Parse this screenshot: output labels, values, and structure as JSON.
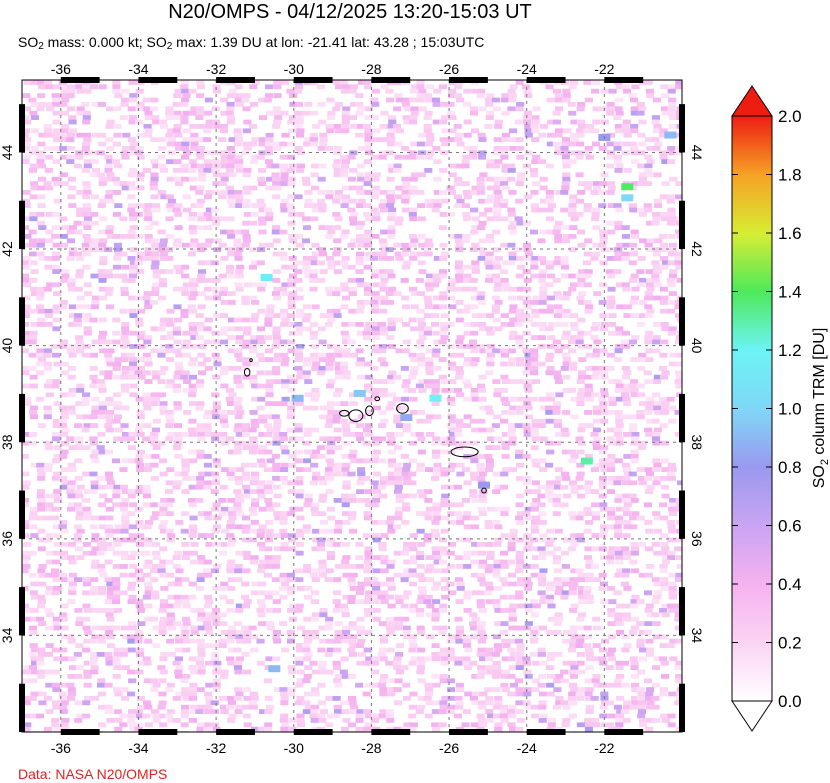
{
  "header": {
    "title": "N20/OMPS - 04/12/2025 13:20-15:03 UT",
    "subtitle_prefix": "SO",
    "subtitle_sub": "2",
    "subtitle_mass": " mass: 0.000 kt; SO",
    "subtitle_sub2": "2",
    "subtitle_rest": " max: 1.39 DU at lon: -21.41 lat: 43.28 ; 15:03UTC"
  },
  "credit": "Data: NASA N20/OMPS",
  "map": {
    "lon_range": [
      -37.0,
      -20.0
    ],
    "lat_range": [
      32.0,
      45.5
    ],
    "lon_ticks": [
      "-36",
      "-34",
      "-32",
      "-30",
      "-28",
      "-26",
      "-24",
      "-22"
    ],
    "lon_values": [
      -36,
      -34,
      -32,
      -30,
      -28,
      -26,
      -24,
      -22
    ],
    "lat_ticks": [
      "34",
      "36",
      "38",
      "40",
      "42",
      "44"
    ],
    "lat_values": [
      34,
      36,
      38,
      40,
      42,
      44
    ],
    "grid": "dashed"
  },
  "colorbar": {
    "label_main": "SO",
    "label_sub": "2",
    "label_rest": " column TRM [DU]",
    "ticks": [
      "0.0",
      "0.2",
      "0.4",
      "0.6",
      "0.8",
      "1.0",
      "1.2",
      "1.4",
      "1.6",
      "1.8",
      "2.0"
    ],
    "min": 0.0,
    "max": 2.0,
    "colors": [
      "#ffffff",
      "#fbd3f3",
      "#f5b2ef",
      "#c9a4f3",
      "#9a99ef",
      "#7fd8f6",
      "#6cf3f5",
      "#4ee95a",
      "#d8ec34",
      "#f6a125",
      "#ee1d12"
    ]
  },
  "highlights": [
    {
      "lon": -21.41,
      "lat": 43.28,
      "value": 1.39
    },
    {
      "lon": -21.41,
      "lat": 43.05,
      "value": 1.0
    },
    {
      "lon": -30.7,
      "lat": 41.4,
      "value": 1.15
    },
    {
      "lon": -26.35,
      "lat": 38.9,
      "value": 1.2
    },
    {
      "lon": -22.45,
      "lat": 37.6,
      "value": 1.3
    },
    {
      "lon": -28.3,
      "lat": 39.0,
      "value": 0.95
    },
    {
      "lon": -20.3,
      "lat": 44.35,
      "value": 0.9
    },
    {
      "lon": -22.0,
      "lat": 44.3,
      "value": 0.8
    },
    {
      "lon": -29.9,
      "lat": 38.9,
      "value": 0.9
    },
    {
      "lon": -30.5,
      "lat": 33.3,
      "value": 0.9
    },
    {
      "lon": -27.1,
      "lat": 38.5,
      "value": 0.85
    },
    {
      "lon": -25.1,
      "lat": 37.1,
      "value": 0.8
    }
  ]
}
